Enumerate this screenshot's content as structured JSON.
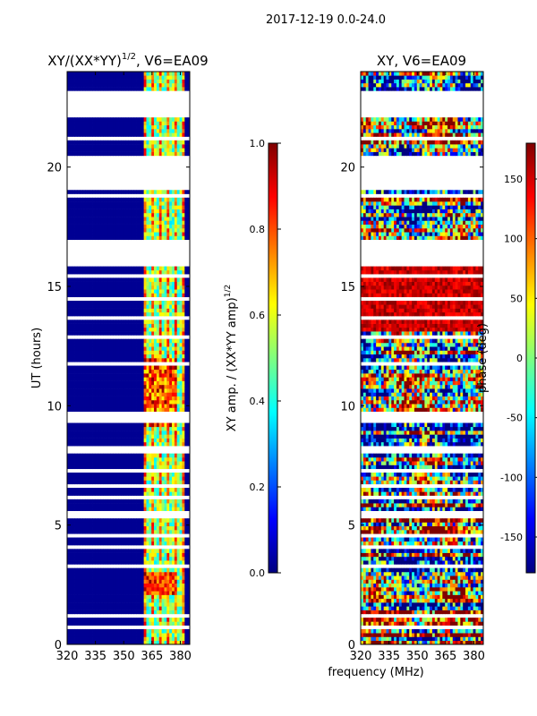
{
  "suptitle": "2017-12-19 0.0-24.0",
  "colormap": [
    "#00007f",
    "#0000ff",
    "#007fff",
    "#00ffff",
    "#7fff7f",
    "#ffff00",
    "#ff7f00",
    "#ff0000",
    "#7f0000"
  ],
  "chart_data": [
    {
      "type": "heatmap",
      "name": "amplitude-ratio",
      "title": "XY/(XX*YY)^(1/2), V6=EA09",
      "title_main": "XY/(XX*YY)",
      "title_sup": "1/2",
      "title_tail": ", V6=EA09",
      "ylabel": "UT (hours)",
      "xlim": [
        320,
        385
      ],
      "ylim": [
        0,
        24
      ],
      "xticks": [
        320,
        335,
        350,
        365,
        380
      ],
      "yticks": [
        0,
        5,
        10,
        15,
        20
      ],
      "colorbar": {
        "label": "XY amp. / (XX*YY amp)^(1/2)",
        "label_main": "XY amp. / (XX*YY amp)",
        "label_sup": "1/2",
        "range": [
          0.0,
          1.0
        ],
        "ticks": [
          "0.0",
          "0.2",
          "0.4",
          "0.6",
          "0.8",
          "1.0"
        ]
      },
      "blank_ut_ranges": [
        [
          15.8,
          17.0
        ],
        [
          19.0,
          20.5
        ],
        [
          22.3,
          23.2
        ]
      ],
      "active_band_mhz": [
        360,
        382
      ],
      "background_value": 0.02
    },
    {
      "type": "heatmap",
      "name": "phase",
      "title": "XY, V6=EA09",
      "xlabel": "frequency (MHz)",
      "xlim": [
        320,
        385
      ],
      "ylim": [
        0,
        24
      ],
      "xticks": [
        320,
        335,
        350,
        365,
        380
      ],
      "yticks": [
        0,
        5,
        10,
        15,
        20
      ],
      "colorbar": {
        "label": "phase (deg)",
        "range": [
          -180,
          180
        ],
        "ticks": [
          "-150",
          "-100",
          "-50",
          "0",
          "50",
          "100",
          "150"
        ]
      },
      "blank_ut_ranges": [
        [
          15.8,
          17.0
        ],
        [
          19.0,
          20.5
        ],
        [
          22.3,
          23.2
        ]
      ]
    }
  ]
}
